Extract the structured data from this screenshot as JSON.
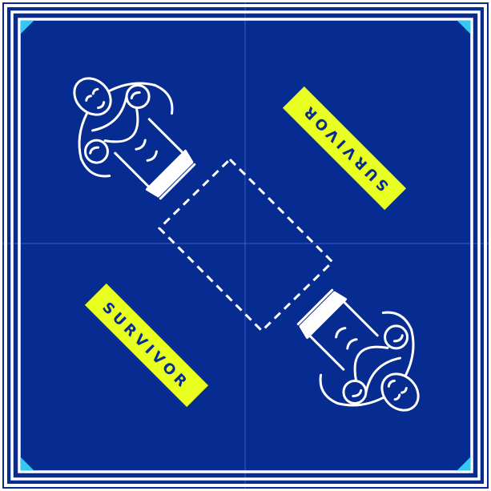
{
  "ring": {
    "canvas_color": "#072C91",
    "rope_color": "#FFFFFF",
    "turnbuckle_color": "#35C8F2",
    "seam_color": "#5B7FD6",
    "center_marker": "dashed-square"
  },
  "banners": [
    {
      "text": "SURVIVOR",
      "color": "#E9FF1F",
      "text_color": "#072C91",
      "orientation": "upside-down"
    },
    {
      "text": "SURVIVOR",
      "color": "#E9FF1F",
      "text_color": "#072C91",
      "orientation": "upright"
    }
  ],
  "fighters": [
    {
      "icon": "boxer-icon",
      "corner": "top-left"
    },
    {
      "icon": "boxer-icon",
      "corner": "bottom-right"
    }
  ]
}
